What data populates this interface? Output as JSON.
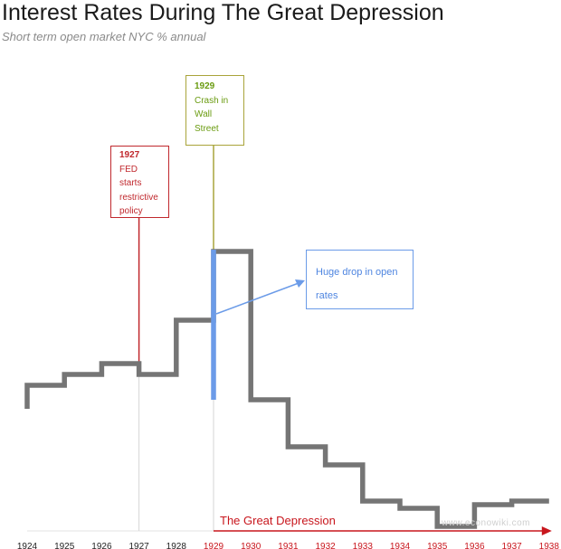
{
  "chart_data": {
    "type": "line",
    "step": true,
    "title": "Interest Rates During The Great Depression",
    "subtitle": "Short term open market NYC % annual",
    "x": [
      1924,
      1925,
      1926,
      1927,
      1928,
      1929,
      1930,
      1931,
      1932,
      1933,
      1934,
      1935,
      1936,
      1937,
      1938
    ],
    "series": [
      {
        "values": [
          4.0,
          4.3,
          4.6,
          4.3,
          5.8,
          7.7,
          3.6,
          2.3,
          1.8,
          0.8,
          0.6,
          0.1,
          0.7,
          0.8,
          0.8
        ]
      }
    ],
    "ylim": [
      0,
      9
    ],
    "highlight": {
      "from": 1929,
      "to": 1930,
      "color": "#6b9be8"
    },
    "annotations": [
      {
        "year": 1927,
        "bold": "1927",
        "lines": [
          "FED",
          "starts",
          "restrictive",
          "policy"
        ],
        "color": "#c0282d"
      },
      {
        "year": 1929,
        "bold": "1929",
        "lines": [
          "Crash in",
          "Wall Street"
        ],
        "color": "#6a9b10"
      },
      {
        "text": "Huge drop in open rates",
        "color": "#4e85e0"
      }
    ],
    "period": {
      "label": "The Great Depression",
      "from": 1929,
      "to": 1938,
      "color": "#c8161d"
    },
    "grid": false,
    "legend": "none"
  },
  "labels": {
    "fed_year": "1927",
    "fed_1": "FED",
    "fed_2": "starts",
    "fed_3": "restrictive",
    "fed_4": "policy",
    "crash_year": "1929",
    "crash_1": "Crash in",
    "crash_2": "Wall Street",
    "drop_1": "Huge drop in open",
    "drop_2": "rates",
    "depression": "The Great Depression",
    "watermark": "www.econowiki.com"
  },
  "colors": {
    "line": "#757575",
    "highlight": "#6b9be8",
    "fed": "#c0282d",
    "crash": "#a9a43a",
    "depression": "#c8161d",
    "tick_black": "#222222"
  }
}
